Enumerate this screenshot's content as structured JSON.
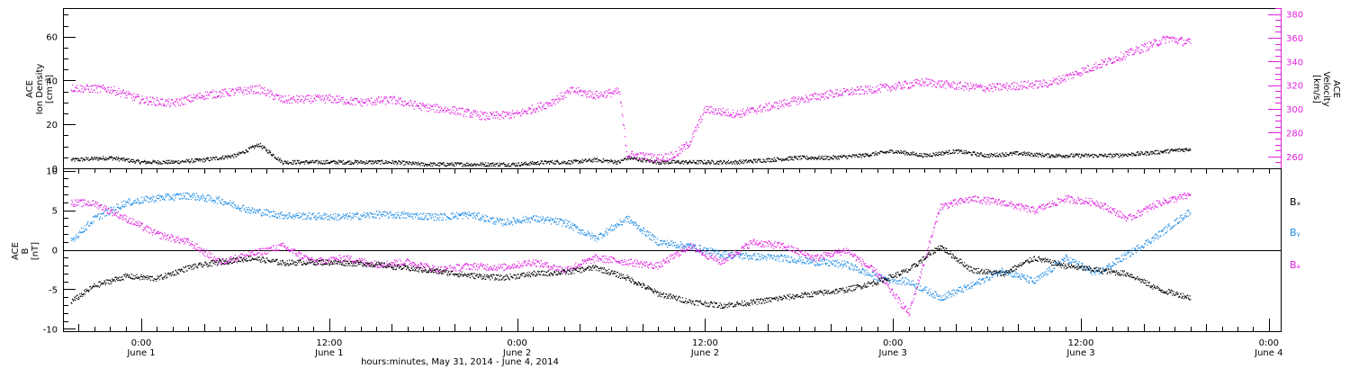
{
  "colors": {
    "black": "#000000",
    "magenta": "#e020e0",
    "blue": "#1a8ae6"
  },
  "x_axis": {
    "title": "hours:minutes, May 31, 2014 - June  4, 2014",
    "ticks": [
      {
        "hour": 24,
        "time": "0:00",
        "date": "June 1"
      },
      {
        "hour": 36,
        "time": "12:00",
        "date": "June 1"
      },
      {
        "hour": 48,
        "time": "0:00",
        "date": "June 2"
      },
      {
        "hour": 60,
        "time": "12:00",
        "date": "June 2"
      },
      {
        "hour": 72,
        "time": "0:00",
        "date": "June 3"
      },
      {
        "hour": 84,
        "time": "12:00",
        "date": "June 3"
      },
      {
        "hour": 96,
        "time": "0:00",
        "date": "June 4"
      }
    ]
  },
  "chart_data": [
    {
      "type": "scatter",
      "panel": "top",
      "ylabel_left": [
        "ACE",
        "Ion Density",
        "[cm⁻³]"
      ],
      "ylabel_right": [
        "ACE",
        "Velocity",
        "[km/s]"
      ],
      "ylim_left": [
        0,
        73
      ],
      "yticks_left": [
        "0",
        "20",
        "40",
        "60"
      ],
      "ylim_right": [
        250,
        385
      ],
      "yticks_right": [
        "260",
        "280",
        "300",
        "320",
        "340",
        "360",
        "380"
      ],
      "x_hour": [
        19.5,
        22,
        24,
        26,
        28,
        30,
        31.5,
        33,
        36,
        38,
        40,
        42,
        44,
        46,
        48,
        50,
        51.5,
        53,
        54.5,
        55,
        57,
        58,
        59,
        60,
        62,
        64,
        66,
        68,
        70,
        72,
        74,
        76,
        78,
        80,
        82,
        84,
        86,
        88,
        89.5,
        91
      ],
      "series": [
        {
          "name": "Ion Density",
          "axis": "left",
          "color_key": "black",
          "values": [
            4,
            5,
            3,
            3,
            4,
            6,
            11,
            3,
            3,
            3,
            3,
            2,
            2,
            2,
            2,
            3,
            3,
            4,
            3,
            5,
            3,
            3,
            3,
            3,
            3,
            4,
            5,
            5,
            6,
            8,
            6,
            8,
            6,
            7,
            6,
            6,
            6,
            7,
            8,
            9
          ]
        },
        {
          "name": "Velocity",
          "axis": "right",
          "color_key": "magenta",
          "values": [
            318,
            317,
            308,
            305,
            312,
            315,
            317,
            308,
            309,
            306,
            308,
            302,
            299,
            294,
            296,
            305,
            316,
            312,
            315,
            262,
            259,
            261,
            272,
            300,
            296,
            302,
            308,
            313,
            316,
            319,
            323,
            320,
            318,
            320,
            322,
            332,
            342,
            352,
            360,
            356
          ]
        }
      ]
    },
    {
      "type": "scatter",
      "panel": "bottom",
      "ylabel_left": [
        "ACE",
        "B",
        "[nT]"
      ],
      "ylim": [
        -10.3,
        10.3
      ],
      "yticks": [
        "-10",
        "-5",
        "0",
        "5",
        "10"
      ],
      "x_hour": [
        19.5,
        21,
        23,
        25,
        27,
        29,
        31,
        33,
        35,
        37,
        39,
        41,
        43,
        45,
        47,
        49,
        51,
        53,
        55,
        57,
        59,
        61,
        63,
        65,
        67,
        69,
        71,
        73,
        75,
        77,
        79,
        81,
        83,
        85,
        87,
        89,
        91
      ],
      "series": [
        {
          "name": "Bx",
          "color_key": "black",
          "values": [
            -6.5,
            -4.5,
            -3.3,
            -3.6,
            -2.2,
            -1.5,
            -1.0,
            -1.6,
            -1.5,
            -1.6,
            -1.8,
            -2.3,
            -2.7,
            -3.2,
            -3.5,
            -3.0,
            -2.8,
            -2.2,
            -3.5,
            -5.5,
            -6.5,
            -7.0,
            -6.6,
            -6.0,
            -5.5,
            -5.0,
            -4.0,
            -2.5,
            0.5,
            -2.5,
            -3.0,
            -1.0,
            -2.0,
            -2.5,
            -3.0,
            -5.0,
            -6.0
          ]
        },
        {
          "name": "By",
          "color_key": "blue",
          "values": [
            1.2,
            4.0,
            6.0,
            6.6,
            6.9,
            6.3,
            5.0,
            4.4,
            4.3,
            4.2,
            4.5,
            4.4,
            4.2,
            4.5,
            3.5,
            4.0,
            3.5,
            1.5,
            4.0,
            1.0,
            0.5,
            -0.5,
            -0.8,
            -1.0,
            -1.5,
            -1.8,
            -3.5,
            -4.0,
            -6.0,
            -4.5,
            -2.5,
            -4.0,
            -1.0,
            -3.0,
            -0.5,
            2.0,
            5.0
          ]
        },
        {
          "name": "Bz",
          "color_key": "magenta",
          "values": [
            6.0,
            5.9,
            4.0,
            2.0,
            1.0,
            -1.5,
            -0.5,
            0.5,
            -1.5,
            -1.0,
            -1.8,
            -1.5,
            -2.5,
            -2.0,
            -2.2,
            -1.5,
            -2.5,
            -1.0,
            -1.5,
            -2.0,
            0.5,
            -1.5,
            1.0,
            0.5,
            -1.0,
            0.0,
            -3.0,
            -8.0,
            5.5,
            6.5,
            6.0,
            5.0,
            6.5,
            6.0,
            4.0,
            6.0,
            7.0
          ]
        }
      ],
      "legend": [
        "Bₓ",
        "Bᵧ",
        "Bₔ"
      ]
    }
  ]
}
